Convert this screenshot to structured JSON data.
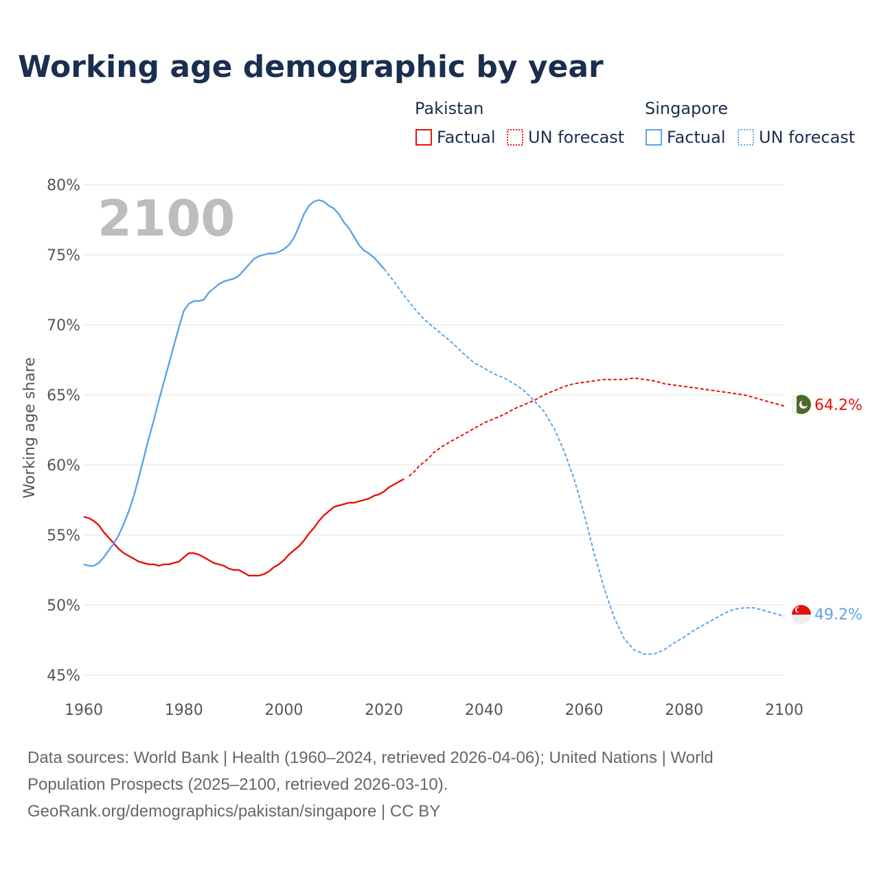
{
  "title": "Working age demographic by year",
  "legend": {
    "groups": [
      {
        "name": "Pakistan",
        "color": "#e3120b",
        "factual_label": "Factual",
        "forecast_label": "UN forecast"
      },
      {
        "name": "Singapore",
        "color": "#5ba3e6",
        "factual_label": "Factual",
        "forecast_label": "UN forecast"
      }
    ]
  },
  "current_year_label": "2100",
  "end_labels": {
    "pakistan": "64.2%",
    "singapore": "49.2%"
  },
  "flag_icons": {
    "pakistan": "pakistan-flag-icon",
    "singapore": "singapore-flag-icon"
  },
  "colors": {
    "pakistan": "#e3120b",
    "singapore": "#5ba3e6",
    "pakistan_flag_green": "#4a6b2a",
    "singapore_flag_red": "#e3120b"
  },
  "chart_data": {
    "type": "line",
    "title": "Working age demographic by year",
    "xlabel": "",
    "ylabel": "Working age share",
    "xlim": [
      1960,
      2100
    ],
    "ylim": [
      45,
      80
    ],
    "x_ticks": [
      1960,
      1980,
      2000,
      2020,
      2040,
      2060,
      2080,
      2100
    ],
    "x_tick_labels": [
      "1960",
      "1980",
      "2000",
      "2020",
      "2040",
      "2060",
      "2080",
      "2100"
    ],
    "y_ticks": [
      45,
      50,
      55,
      60,
      65,
      70,
      75,
      80
    ],
    "y_tick_labels": [
      "45%",
      "50%",
      "55%",
      "60%",
      "65%",
      "70%",
      "75%",
      "80%"
    ],
    "factual_range": [
      1960,
      2024
    ],
    "forecast_range": [
      2025,
      2100
    ],
    "series": [
      {
        "name": "Pakistan",
        "color": "#e3120b",
        "factual": [
          [
            1960,
            56.3
          ],
          [
            1961,
            56.2
          ],
          [
            1962,
            56.0
          ],
          [
            1963,
            55.7
          ],
          [
            1964,
            55.2
          ],
          [
            1965,
            54.8
          ],
          [
            1966,
            54.4
          ],
          [
            1967,
            54.0
          ],
          [
            1968,
            53.7
          ],
          [
            1969,
            53.5
          ],
          [
            1970,
            53.3
          ],
          [
            1971,
            53.1
          ],
          [
            1972,
            53.0
          ],
          [
            1973,
            52.9
          ],
          [
            1974,
            52.9
          ],
          [
            1975,
            52.8
          ],
          [
            1976,
            52.9
          ],
          [
            1977,
            52.9
          ],
          [
            1978,
            53.0
          ],
          [
            1979,
            53.1
          ],
          [
            1980,
            53.4
          ],
          [
            1981,
            53.7
          ],
          [
            1982,
            53.7
          ],
          [
            1983,
            53.6
          ],
          [
            1984,
            53.4
          ],
          [
            1985,
            53.2
          ],
          [
            1986,
            53.0
          ],
          [
            1987,
            52.9
          ],
          [
            1988,
            52.8
          ],
          [
            1989,
            52.6
          ],
          [
            1990,
            52.5
          ],
          [
            1991,
            52.5
          ],
          [
            1992,
            52.3
          ],
          [
            1993,
            52.1
          ],
          [
            1994,
            52.1
          ],
          [
            1995,
            52.1
          ],
          [
            1996,
            52.2
          ],
          [
            1997,
            52.4
          ],
          [
            1998,
            52.7
          ],
          [
            1999,
            52.9
          ],
          [
            2000,
            53.2
          ],
          [
            2001,
            53.6
          ],
          [
            2002,
            53.9
          ],
          [
            2003,
            54.2
          ],
          [
            2004,
            54.6
          ],
          [
            2005,
            55.1
          ],
          [
            2006,
            55.5
          ],
          [
            2007,
            56.0
          ],
          [
            2008,
            56.4
          ],
          [
            2009,
            56.7
          ],
          [
            2010,
            57.0
          ],
          [
            2011,
            57.1
          ],
          [
            2012,
            57.2
          ],
          [
            2013,
            57.3
          ],
          [
            2014,
            57.3
          ],
          [
            2015,
            57.4
          ],
          [
            2016,
            57.5
          ],
          [
            2017,
            57.6
          ],
          [
            2018,
            57.8
          ],
          [
            2019,
            57.9
          ],
          [
            2020,
            58.1
          ],
          [
            2021,
            58.4
          ],
          [
            2022,
            58.6
          ],
          [
            2023,
            58.8
          ],
          [
            2024,
            59.0
          ]
        ],
        "forecast": [
          [
            2025,
            59.2
          ],
          [
            2026,
            59.5
          ],
          [
            2027,
            59.9
          ],
          [
            2028,
            60.2
          ],
          [
            2029,
            60.5
          ],
          [
            2030,
            60.9
          ],
          [
            2032,
            61.4
          ],
          [
            2034,
            61.8
          ],
          [
            2036,
            62.2
          ],
          [
            2038,
            62.6
          ],
          [
            2040,
            63.0
          ],
          [
            2042,
            63.3
          ],
          [
            2044,
            63.6
          ],
          [
            2046,
            64.0
          ],
          [
            2048,
            64.3
          ],
          [
            2050,
            64.6
          ],
          [
            2052,
            65.0
          ],
          [
            2054,
            65.3
          ],
          [
            2056,
            65.6
          ],
          [
            2058,
            65.8
          ],
          [
            2060,
            65.9
          ],
          [
            2062,
            66.0
          ],
          [
            2064,
            66.1
          ],
          [
            2066,
            66.1
          ],
          [
            2068,
            66.1
          ],
          [
            2070,
            66.2
          ],
          [
            2072,
            66.1
          ],
          [
            2074,
            66.0
          ],
          [
            2076,
            65.8
          ],
          [
            2078,
            65.7
          ],
          [
            2080,
            65.6
          ],
          [
            2082,
            65.5
          ],
          [
            2084,
            65.4
          ],
          [
            2086,
            65.3
          ],
          [
            2088,
            65.2
          ],
          [
            2090,
            65.1
          ],
          [
            2092,
            65.0
          ],
          [
            2094,
            64.8
          ],
          [
            2096,
            64.6
          ],
          [
            2098,
            64.4
          ],
          [
            2100,
            64.2
          ]
        ]
      },
      {
        "name": "Singapore",
        "color": "#5ba3e6",
        "factual": [
          [
            1960,
            52.9
          ],
          [
            1961,
            52.8
          ],
          [
            1962,
            52.8
          ],
          [
            1963,
            53.0
          ],
          [
            1964,
            53.4
          ],
          [
            1965,
            53.9
          ],
          [
            1966,
            54.4
          ],
          [
            1967,
            55.0
          ],
          [
            1968,
            55.8
          ],
          [
            1969,
            56.7
          ],
          [
            1970,
            57.8
          ],
          [
            1971,
            59.1
          ],
          [
            1972,
            60.5
          ],
          [
            1973,
            61.9
          ],
          [
            1974,
            63.2
          ],
          [
            1975,
            64.6
          ],
          [
            1976,
            65.9
          ],
          [
            1977,
            67.2
          ],
          [
            1978,
            68.5
          ],
          [
            1979,
            69.8
          ],
          [
            1980,
            71.0
          ],
          [
            1981,
            71.5
          ],
          [
            1982,
            71.7
          ],
          [
            1983,
            71.7
          ],
          [
            1984,
            71.8
          ],
          [
            1985,
            72.3
          ],
          [
            1986,
            72.6
          ],
          [
            1987,
            72.9
          ],
          [
            1988,
            73.1
          ],
          [
            1989,
            73.2
          ],
          [
            1990,
            73.3
          ],
          [
            1991,
            73.5
          ],
          [
            1992,
            73.9
          ],
          [
            1993,
            74.3
          ],
          [
            1994,
            74.7
          ],
          [
            1995,
            74.9
          ],
          [
            1996,
            75.0
          ],
          [
            1997,
            75.1
          ],
          [
            1998,
            75.1
          ],
          [
            1999,
            75.2
          ],
          [
            2000,
            75.4
          ],
          [
            2001,
            75.7
          ],
          [
            2002,
            76.2
          ],
          [
            2003,
            77.0
          ],
          [
            2004,
            77.9
          ],
          [
            2005,
            78.5
          ],
          [
            2006,
            78.8
          ],
          [
            2007,
            78.9
          ],
          [
            2008,
            78.8
          ],
          [
            2009,
            78.5
          ],
          [
            2010,
            78.3
          ],
          [
            2011,
            77.9
          ],
          [
            2012,
            77.3
          ],
          [
            2013,
            76.9
          ],
          [
            2014,
            76.3
          ],
          [
            2015,
            75.7
          ],
          [
            2016,
            75.3
          ],
          [
            2017,
            75.1
          ],
          [
            2018,
            74.8
          ],
          [
            2019,
            74.4
          ],
          [
            2020,
            74.0
          ]
        ],
        "forecast": [
          [
            2020,
            74.0
          ],
          [
            2022,
            73.1
          ],
          [
            2024,
            72.1
          ],
          [
            2026,
            71.2
          ],
          [
            2028,
            70.4
          ],
          [
            2030,
            69.8
          ],
          [
            2032,
            69.2
          ],
          [
            2034,
            68.6
          ],
          [
            2036,
            67.9
          ],
          [
            2038,
            67.3
          ],
          [
            2040,
            66.9
          ],
          [
            2042,
            66.5
          ],
          [
            2044,
            66.2
          ],
          [
            2046,
            65.8
          ],
          [
            2048,
            65.3
          ],
          [
            2050,
            64.6
          ],
          [
            2052,
            63.8
          ],
          [
            2054,
            62.6
          ],
          [
            2056,
            61.0
          ],
          [
            2058,
            59.0
          ],
          [
            2060,
            56.5
          ],
          [
            2062,
            53.7
          ],
          [
            2064,
            51.2
          ],
          [
            2066,
            49.1
          ],
          [
            2068,
            47.6
          ],
          [
            2070,
            46.8
          ],
          [
            2072,
            46.5
          ],
          [
            2074,
            46.5
          ],
          [
            2076,
            46.8
          ],
          [
            2078,
            47.3
          ],
          [
            2080,
            47.7
          ],
          [
            2082,
            48.2
          ],
          [
            2084,
            48.6
          ],
          [
            2086,
            49.0
          ],
          [
            2088,
            49.4
          ],
          [
            2090,
            49.7
          ],
          [
            2092,
            49.8
          ],
          [
            2094,
            49.8
          ],
          [
            2096,
            49.6
          ],
          [
            2098,
            49.4
          ],
          [
            2100,
            49.2
          ]
        ]
      }
    ]
  },
  "sources": {
    "line1": "Data sources: World Bank | Health (1960–2024, retrieved 2026-04-06); United Nations | World",
    "line2": "Population Prospects (2025–2100, retrieved 2026-03-10).",
    "line3": "GeoRank.org/demographics/pakistan/singapore | CC BY"
  }
}
